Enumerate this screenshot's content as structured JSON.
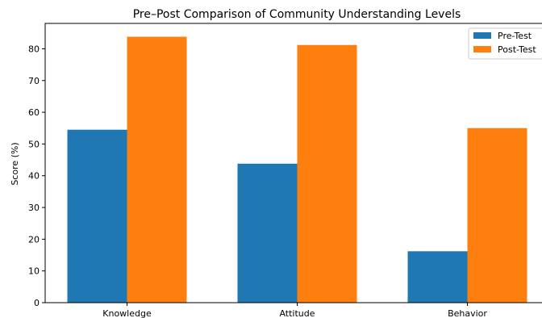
{
  "chart_data": {
    "type": "bar",
    "title": "Pre–Post Comparison of Community Understanding Levels",
    "xlabel": "",
    "ylabel": "Score (%)",
    "categories": [
      "Knowledge",
      "Attitude",
      "Behavior"
    ],
    "series": [
      {
        "name": "Pre-Test",
        "values": [
          54.5,
          43.8,
          16.2
        ],
        "color": "#1f77b4"
      },
      {
        "name": "Post-Test",
        "values": [
          83.8,
          81.2,
          55.0
        ],
        "color": "#ff7f0e"
      }
    ],
    "ylim": [
      0,
      88
    ],
    "yticks": [
      "0",
      "10",
      "20",
      "30",
      "40",
      "50",
      "60",
      "70",
      "80"
    ],
    "grid": false,
    "legend_position": "top-right"
  }
}
